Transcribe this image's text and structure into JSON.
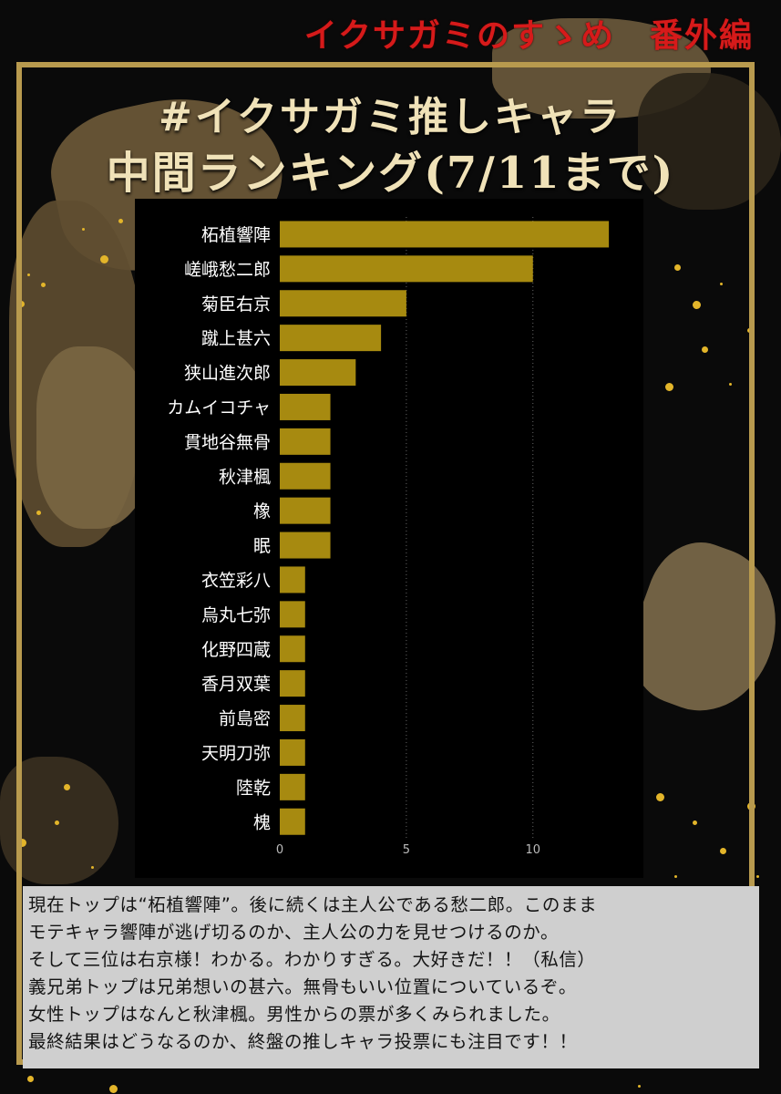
{
  "header": {
    "title": "イクサガミのすゝめ　番外編"
  },
  "titles": {
    "line1": "#イクサガミ推しキャラ",
    "line2": "中間ランキング(7/11まで)"
  },
  "colors": {
    "bar": "#a78a10",
    "frame": "#b89a4e",
    "header_text": "#d61a1a",
    "title_text": "#f0e2b8"
  },
  "chart_data": {
    "type": "bar",
    "orientation": "horizontal",
    "categories": [
      "柘植響陣",
      "嵯峨愁二郎",
      "菊臣右京",
      "蹴上甚六",
      "狭山進次郎",
      "カムイコチャ",
      "貫地谷無骨",
      "秋津楓",
      "橡",
      "眠",
      "衣笠彩八",
      "烏丸七弥",
      "化野四蔵",
      "香月双葉",
      "前島密",
      "天明刀弥",
      "陸乾",
      "槐"
    ],
    "values": [
      13,
      10,
      5,
      4,
      3,
      2,
      2,
      2,
      2,
      2,
      1,
      1,
      1,
      1,
      1,
      1,
      1,
      1
    ],
    "xticks": [
      "0",
      "5",
      "10"
    ],
    "xlim": [
      0,
      13.5
    ],
    "grid": "vertical dotted"
  },
  "comment": {
    "lines": [
      "現在トップは“柘植響陣”。後に続くは主人公である愁二郎。このまま",
      "モテキャラ響陣が逃げ切るのか、主人公の力を見せつけるのか。",
      "そして三位は右京様！わかる。わかりすぎる。大好きだ！！（私信）",
      "義兄弟トップは兄弟想いの甚六。無骨もいい位置についているぞ。",
      "女性トップはなんと秋津楓。男性からの票が多くみられました。",
      "最終結果はどうなるのか、終盤の推しキャラ投票にも注目です！！"
    ]
  }
}
